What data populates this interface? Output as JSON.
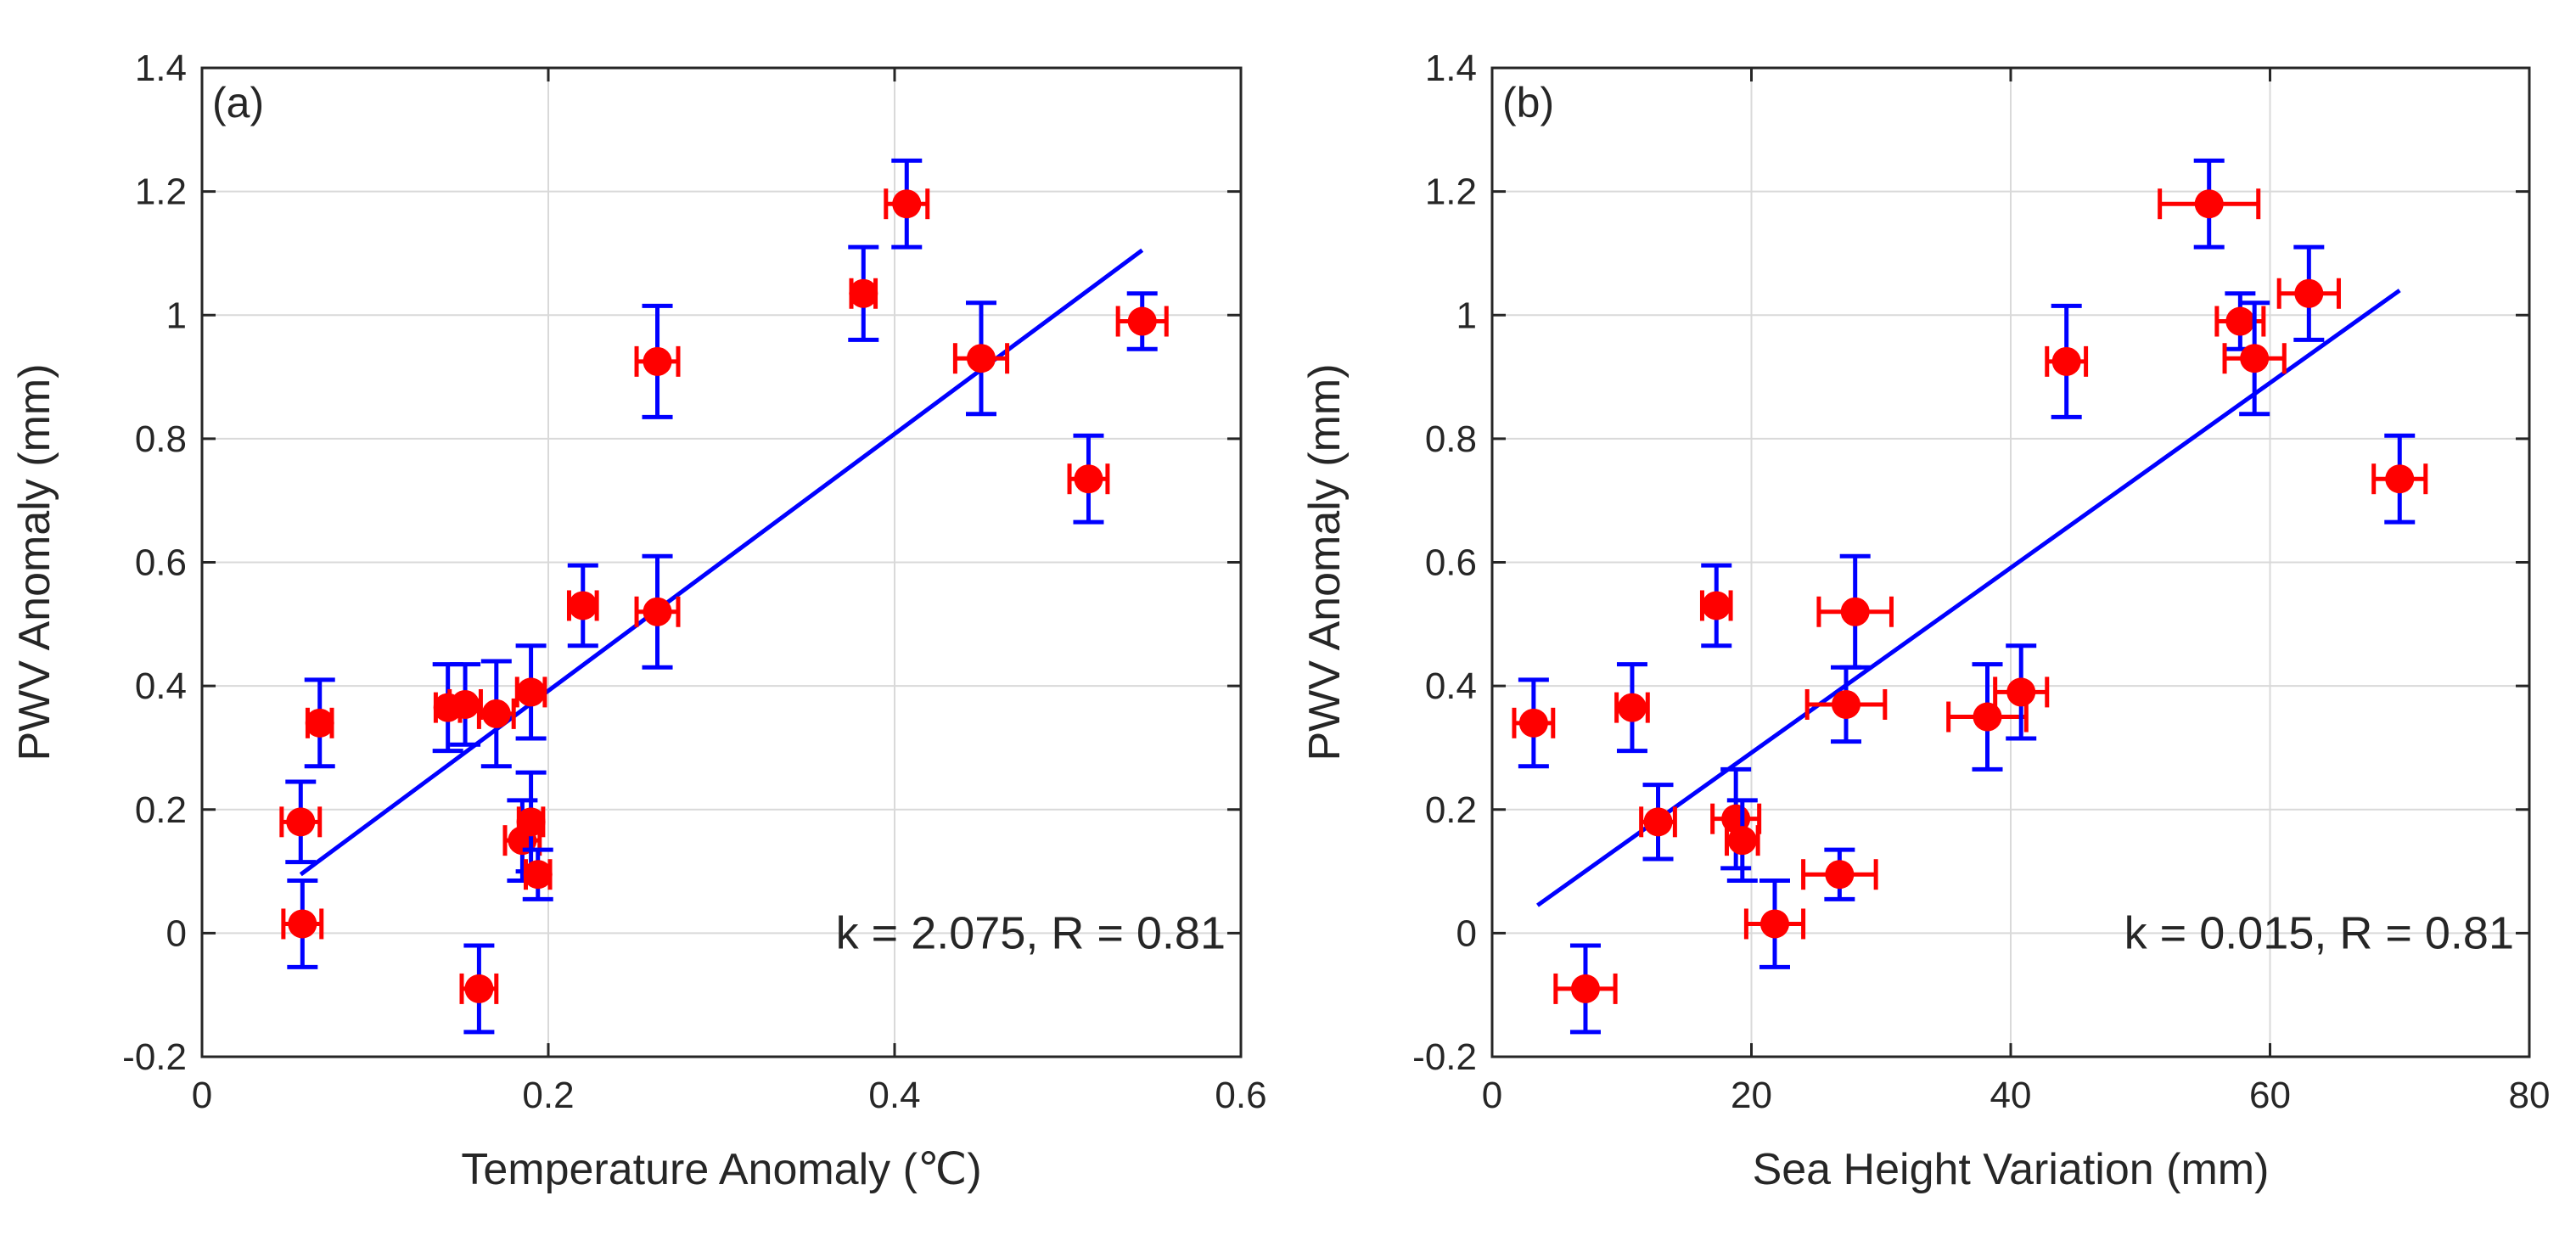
{
  "colors": {
    "marker": "#ff0000",
    "x_error": "#ff0000",
    "y_error": "#0000ff",
    "fit_line": "#0000ff",
    "axes": "#262626",
    "grid": "#d9d9d9"
  },
  "chart_data": [
    {
      "type": "scatter",
      "panel_label": "(a)",
      "xlabel": "Temperature Anomaly (℃)",
      "ylabel": "PWV Anomaly (mm)",
      "xlim": [
        0,
        0.6
      ],
      "ylim": [
        -0.2,
        1.4
      ],
      "xticks": [
        0,
        0.2,
        0.4,
        0.6
      ],
      "xtick_labels": [
        "0",
        "0.2",
        "0.4",
        "0.6"
      ],
      "yticks": [
        -0.2,
        0,
        0.2,
        0.4,
        0.6,
        0.8,
        1.0,
        1.2,
        1.4
      ],
      "ytick_labels": [
        "-0.2",
        "0",
        "0.2",
        "0.4",
        "0.6",
        "0.8",
        "1",
        "1.2",
        "1.4"
      ],
      "grid": true,
      "annotation": "k = 2.075, R = 0.81",
      "fit_line": {
        "x": [
          0.057,
          0.543
        ],
        "y": [
          0.095,
          1.105
        ]
      },
      "points": [
        {
          "x": 0.057,
          "y": 0.18,
          "xerr": 0.011,
          "yerr": 0.065
        },
        {
          "x": 0.058,
          "y": 0.015,
          "xerr": 0.011,
          "yerr": 0.07
        },
        {
          "x": 0.068,
          "y": 0.34,
          "xerr": 0.007,
          "yerr": 0.07
        },
        {
          "x": 0.142,
          "y": 0.365,
          "xerr": 0.007,
          "yerr": 0.07
        },
        {
          "x": 0.152,
          "y": 0.37,
          "xerr": 0.009,
          "yerr": 0.065
        },
        {
          "x": 0.16,
          "y": -0.09,
          "xerr": 0.01,
          "yerr": 0.07
        },
        {
          "x": 0.17,
          "y": 0.355,
          "xerr": 0.01,
          "yerr": 0.085
        },
        {
          "x": 0.185,
          "y": 0.15,
          "xerr": 0.01,
          "yerr": 0.065
        },
        {
          "x": 0.19,
          "y": 0.18,
          "xerr": 0.007,
          "yerr": 0.08
        },
        {
          "x": 0.19,
          "y": 0.39,
          "xerr": 0.008,
          "yerr": 0.075
        },
        {
          "x": 0.194,
          "y": 0.095,
          "xerr": 0.007,
          "yerr": 0.04
        },
        {
          "x": 0.22,
          "y": 0.53,
          "xerr": 0.008,
          "yerr": 0.065
        },
        {
          "x": 0.263,
          "y": 0.925,
          "xerr": 0.012,
          "yerr": 0.09
        },
        {
          "x": 0.263,
          "y": 0.52,
          "xerr": 0.012,
          "yerr": 0.09
        },
        {
          "x": 0.382,
          "y": 1.035,
          "xerr": 0.007,
          "yerr": 0.075
        },
        {
          "x": 0.407,
          "y": 1.18,
          "xerr": 0.012,
          "yerr": 0.07
        },
        {
          "x": 0.45,
          "y": 0.93,
          "xerr": 0.015,
          "yerr": 0.09
        },
        {
          "x": 0.512,
          "y": 0.735,
          "xerr": 0.011,
          "yerr": 0.07
        },
        {
          "x": 0.543,
          "y": 0.99,
          "xerr": 0.014,
          "yerr": 0.045
        }
      ]
    },
    {
      "type": "scatter",
      "panel_label": "(b)",
      "xlabel": "Sea Height Variation (mm)",
      "ylabel": "PWV Anomaly (mm)",
      "xlim": [
        0,
        80
      ],
      "ylim": [
        -0.2,
        1.4
      ],
      "xticks": [
        0,
        20,
        40,
        60,
        80
      ],
      "xtick_labels": [
        "0",
        "20",
        "40",
        "60",
        "80"
      ],
      "yticks": [
        -0.2,
        0,
        0.2,
        0.4,
        0.6,
        0.8,
        1.0,
        1.2,
        1.4
      ],
      "ytick_labels": [
        "-0.2",
        "0",
        "0.2",
        "0.4",
        "0.6",
        "0.8",
        "1",
        "1.2",
        "1.4"
      ],
      "grid": true,
      "annotation": "k = 0.015, R = 0.81",
      "fit_line": {
        "x": [
          3.5,
          70
        ],
        "y": [
          0.045,
          1.04
        ]
      },
      "points": [
        {
          "x": 3.2,
          "y": 0.34,
          "xerr": 1.5,
          "yerr": 0.07
        },
        {
          "x": 7.2,
          "y": -0.09,
          "xerr": 2.3,
          "yerr": 0.07
        },
        {
          "x": 10.8,
          "y": 0.365,
          "xerr": 1.2,
          "yerr": 0.07
        },
        {
          "x": 12.8,
          "y": 0.18,
          "xerr": 1.3,
          "yerr": 0.06
        },
        {
          "x": 17.3,
          "y": 0.53,
          "xerr": 1.1,
          "yerr": 0.065
        },
        {
          "x": 18.8,
          "y": 0.185,
          "xerr": 1.8,
          "yerr": 0.08
        },
        {
          "x": 19.3,
          "y": 0.15,
          "xerr": 1.2,
          "yerr": 0.065
        },
        {
          "x": 21.8,
          "y": 0.015,
          "xerr": 2.2,
          "yerr": 0.07
        },
        {
          "x": 26.8,
          "y": 0.095,
          "xerr": 2.8,
          "yerr": 0.04
        },
        {
          "x": 27.3,
          "y": 0.37,
          "xerr": 3.0,
          "yerr": 0.06
        },
        {
          "x": 28.0,
          "y": 0.52,
          "xerr": 2.8,
          "yerr": 0.09
        },
        {
          "x": 38.2,
          "y": 0.35,
          "xerr": 3.0,
          "yerr": 0.085
        },
        {
          "x": 40.8,
          "y": 0.39,
          "xerr": 2.0,
          "yerr": 0.075
        },
        {
          "x": 44.3,
          "y": 0.925,
          "xerr": 1.5,
          "yerr": 0.09
        },
        {
          "x": 55.3,
          "y": 1.18,
          "xerr": 3.8,
          "yerr": 0.07
        },
        {
          "x": 57.7,
          "y": 0.99,
          "xerr": 1.8,
          "yerr": 0.045
        },
        {
          "x": 58.8,
          "y": 0.93,
          "xerr": 2.3,
          "yerr": 0.09
        },
        {
          "x": 63.0,
          "y": 1.035,
          "xerr": 2.3,
          "yerr": 0.075
        },
        {
          "x": 70.0,
          "y": 0.735,
          "xerr": 2.0,
          "yerr": 0.07
        }
      ]
    }
  ]
}
